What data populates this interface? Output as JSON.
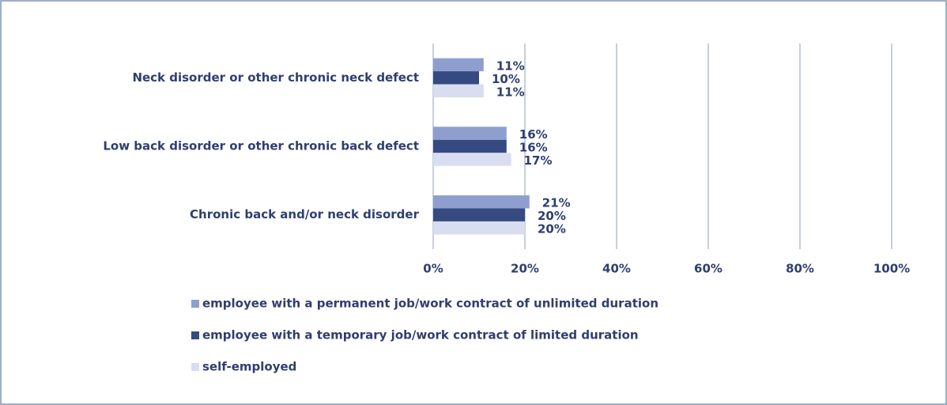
{
  "chart_data": {
    "type": "bar",
    "orientation": "horizontal",
    "categories": [
      "Neck disorder or other chronic neck defect",
      "Low back disorder or other chronic back defect",
      "Chronic back and/or neck disorder"
    ],
    "series": [
      {
        "name": "employee with a permanent job/work contract of unlimited duration",
        "color": "#8e9fcf",
        "values": [
          11,
          16,
          21
        ],
        "value_labels": [
          "11%",
          "16%",
          "21%"
        ]
      },
      {
        "name": "employee with a temporary job/work contract of limited duration",
        "color": "#354a80",
        "values": [
          10,
          16,
          20
        ],
        "value_labels": [
          "10%",
          "16%",
          "20%"
        ]
      },
      {
        "name": "self-employed",
        "color": "#d9ddf0",
        "values": [
          11,
          17,
          20
        ],
        "value_labels": [
          "11%",
          "17%",
          "20%"
        ]
      }
    ],
    "xlim": [
      0,
      100
    ],
    "xticks": [
      {
        "value": 0,
        "label": "0%"
      },
      {
        "value": 20,
        "label": "20%"
      },
      {
        "value": 40,
        "label": "40%"
      },
      {
        "value": 60,
        "label": "60%"
      },
      {
        "value": 80,
        "label": "80%"
      },
      {
        "value": 100,
        "label": "100%"
      }
    ],
    "grid": true,
    "legend": "bottom"
  }
}
